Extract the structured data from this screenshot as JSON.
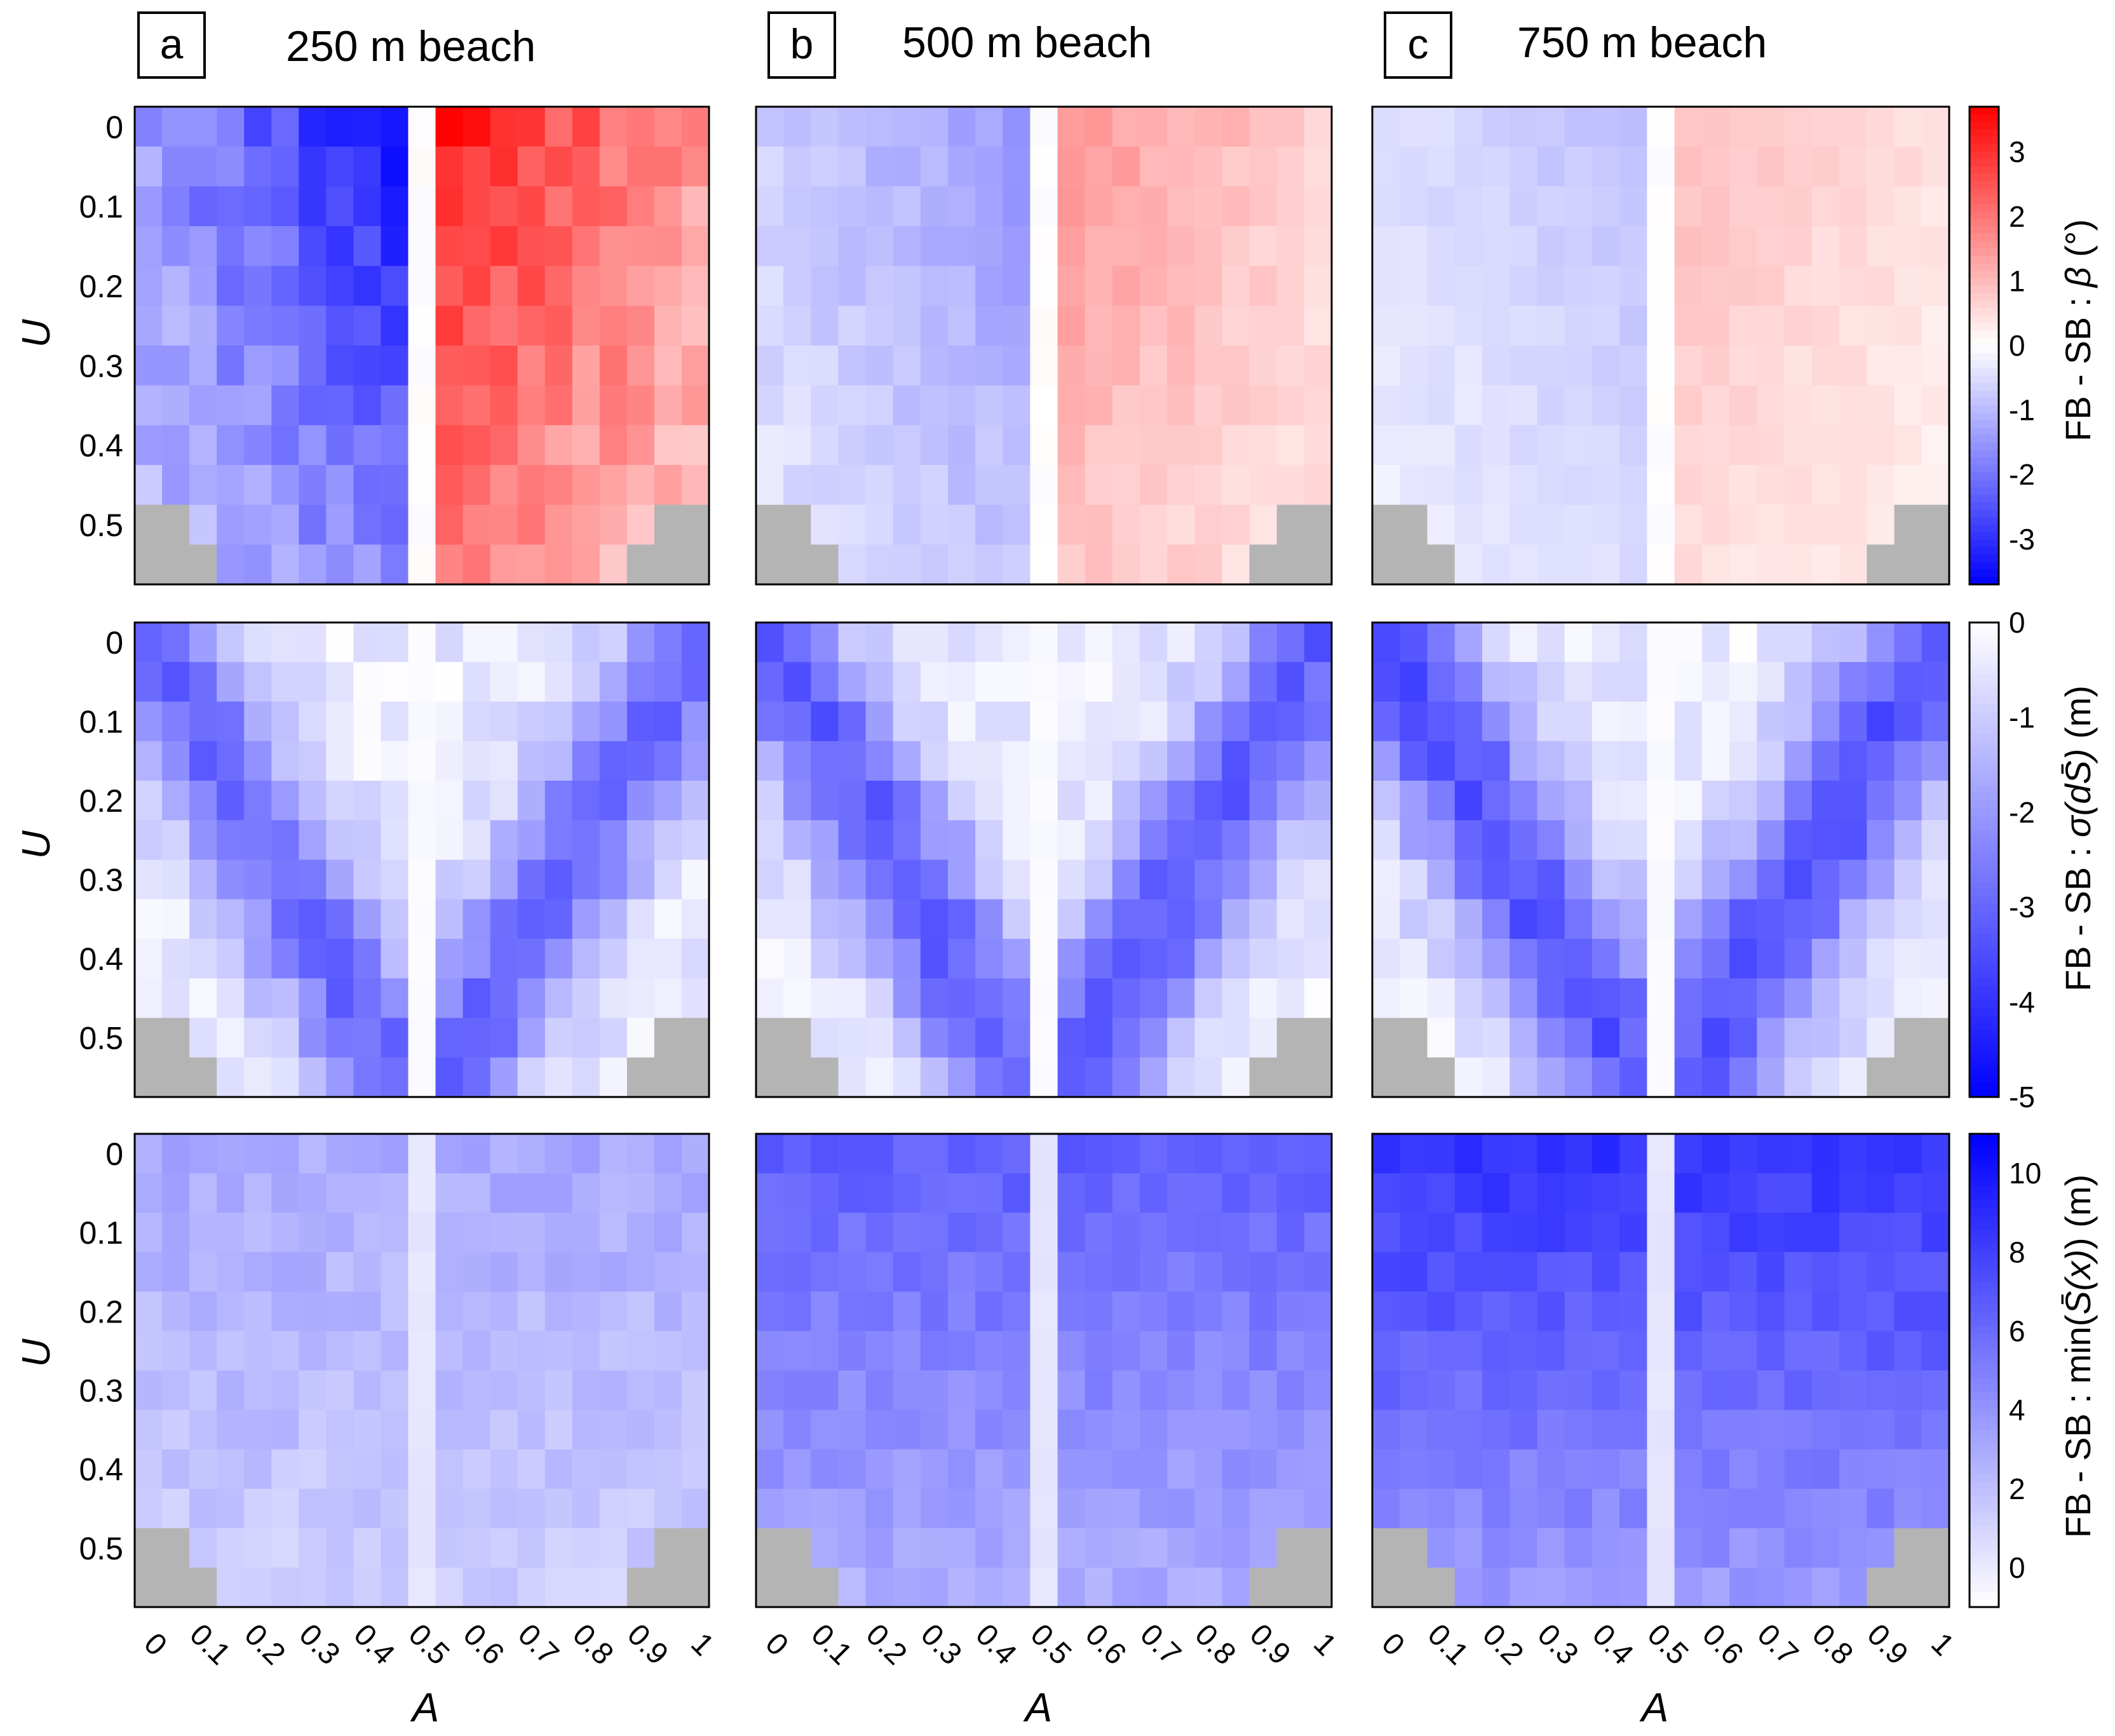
{
  "chart_data": [
    {
      "type": "heatmap",
      "figure_panels": [
        {
          "letter": "a",
          "title": "250 m beach"
        },
        {
          "letter": "b",
          "title": "500 m beach"
        },
        {
          "letter": "c",
          "title": "750 m beach"
        }
      ],
      "x": {
        "label": "A",
        "ticks": [
          "0",
          "0.1",
          "0.2",
          "0.3",
          "0.4",
          "0.5",
          "0.6",
          "0.7",
          "0.8",
          "0.9",
          "1"
        ],
        "range": [
          0,
          1
        ]
      },
      "y": {
        "label": "U",
        "ticks": [
          "0",
          "0.1",
          "0.2",
          "0.3",
          "0.4",
          "0.5"
        ],
        "range": [
          0,
          0.55
        ]
      },
      "grid": {
        "columns": 21,
        "rows": 12,
        "masked_color": "#b4b4b4"
      },
      "rows": [
        {
          "name": "beta",
          "colorbar": {
            "label_parts": [
              "FB - SB : ",
              "β",
              " (°)"
            ],
            "ticks": [
              "3",
              "2",
              "1",
              "0",
              "-1",
              "-2",
              "-3"
            ],
            "range": [
              -3.7,
              3.7
            ],
            "low_color": "#0000ff",
            "mid_color": "#ffffff",
            "high_color": "#ff0000"
          },
          "panels": [
            {
              "beach": "250 m",
              "pattern": "antisym",
              "amp": 3.5,
              "split": 10,
              "core": 0.9
            },
            {
              "beach": "500 m",
              "pattern": "antisym",
              "amp": 1.6,
              "split": 10,
              "core": 0.6
            },
            {
              "beach": "750 m",
              "pattern": "antisym",
              "amp": 1.0,
              "split": 10,
              "core": 0.5
            }
          ]
        },
        {
          "name": "sigma",
          "colorbar": {
            "label_parts": [
              "FB - SB :  ",
              "σ(dS̄)",
              " (m)"
            ],
            "ticks": [
              "0",
              "-1",
              "-2",
              "-3",
              "-4",
              "-5"
            ],
            "range": [
              -5,
              0
            ],
            "low_color": "#0000ff",
            "high_color": "#ffffff"
          },
          "panels": [
            {
              "beach": "250 m",
              "pattern": "vshape",
              "amp": 2.6,
              "spread": 0.45
            },
            {
              "beach": "500 m",
              "pattern": "vshape",
              "amp": 2.8,
              "spread": 0.5
            },
            {
              "beach": "750 m",
              "pattern": "vshape",
              "amp": 3.0,
              "spread": 0.55
            }
          ]
        },
        {
          "name": "min_S",
          "colorbar": {
            "label_parts": [
              "FB - SB : min(",
              "S̄(x)",
              ") (m)"
            ],
            "ticks": [
              "10",
              "8",
              "6",
              "4",
              "2",
              "0"
            ],
            "range": [
              -1,
              11
            ],
            "low_color": "#ffffff",
            "high_color": "#0000ff"
          },
          "panels": [
            {
              "beach": "250 m",
              "pattern": "topfade",
              "amp": 3.0
            },
            {
              "beach": "500 m",
              "pattern": "topfade",
              "amp": 6.5
            },
            {
              "beach": "750 m",
              "pattern": "topfade",
              "amp": 8.5
            }
          ]
        }
      ]
    }
  ]
}
